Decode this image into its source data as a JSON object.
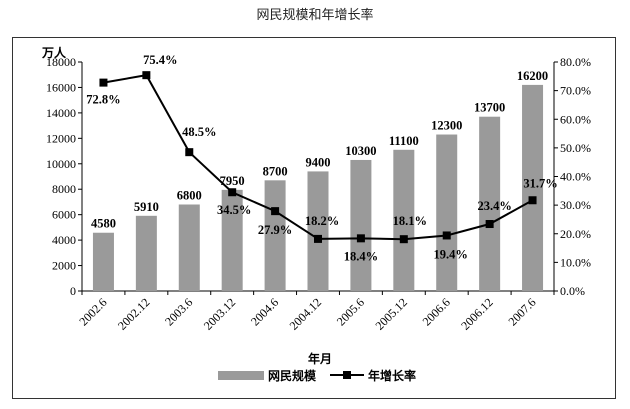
{
  "chart_data": {
    "type": "bar+line",
    "title": "网民规模和年增长率",
    "categories": [
      "2002.6",
      "2002.12",
      "2003.6",
      "2003.12",
      "2004.6",
      "2004.12",
      "2005.6",
      "2005.12",
      "2006.6",
      "2006.12",
      "2007.6"
    ],
    "series": [
      {
        "name": "网民规模",
        "type": "bar",
        "axis": "left",
        "values": [
          4580,
          5910,
          6800,
          7950,
          8700,
          9400,
          10300,
          11100,
          12300,
          13700,
          16200
        ],
        "labels": [
          "4580",
          "5910",
          "6800",
          "7950",
          "8700",
          "9400",
          "10300",
          "11100",
          "12300",
          "13700",
          "16200"
        ],
        "color": "#9a9a9a"
      },
      {
        "name": "年增长率",
        "type": "line",
        "axis": "right",
        "values": [
          72.8,
          75.4,
          48.5,
          34.5,
          27.9,
          18.2,
          18.4,
          18.1,
          19.4,
          23.4,
          31.7
        ],
        "labels": [
          "72.8%",
          "75.4%",
          "48.5%",
          "34.5%",
          "27.9%",
          "18.2%",
          "18.4%",
          "18.1%",
          "19.4%",
          "23.4%",
          "31.7%"
        ],
        "color": "#000000"
      }
    ],
    "ylabel": "万人",
    "xlabel": "年月",
    "ylim": [
      0,
      18000
    ],
    "yticks": [
      "0",
      "2000",
      "4000",
      "6000",
      "8000",
      "10000",
      "12000",
      "14000",
      "16000",
      "18000"
    ],
    "y2lim": [
      0,
      80
    ],
    "y2ticks": [
      "0.0%",
      "10.0%",
      "20.0%",
      "30.0%",
      "40.0%",
      "50.0%",
      "60.0%",
      "70.0%",
      "80.0%"
    ],
    "legend": "bottom"
  }
}
